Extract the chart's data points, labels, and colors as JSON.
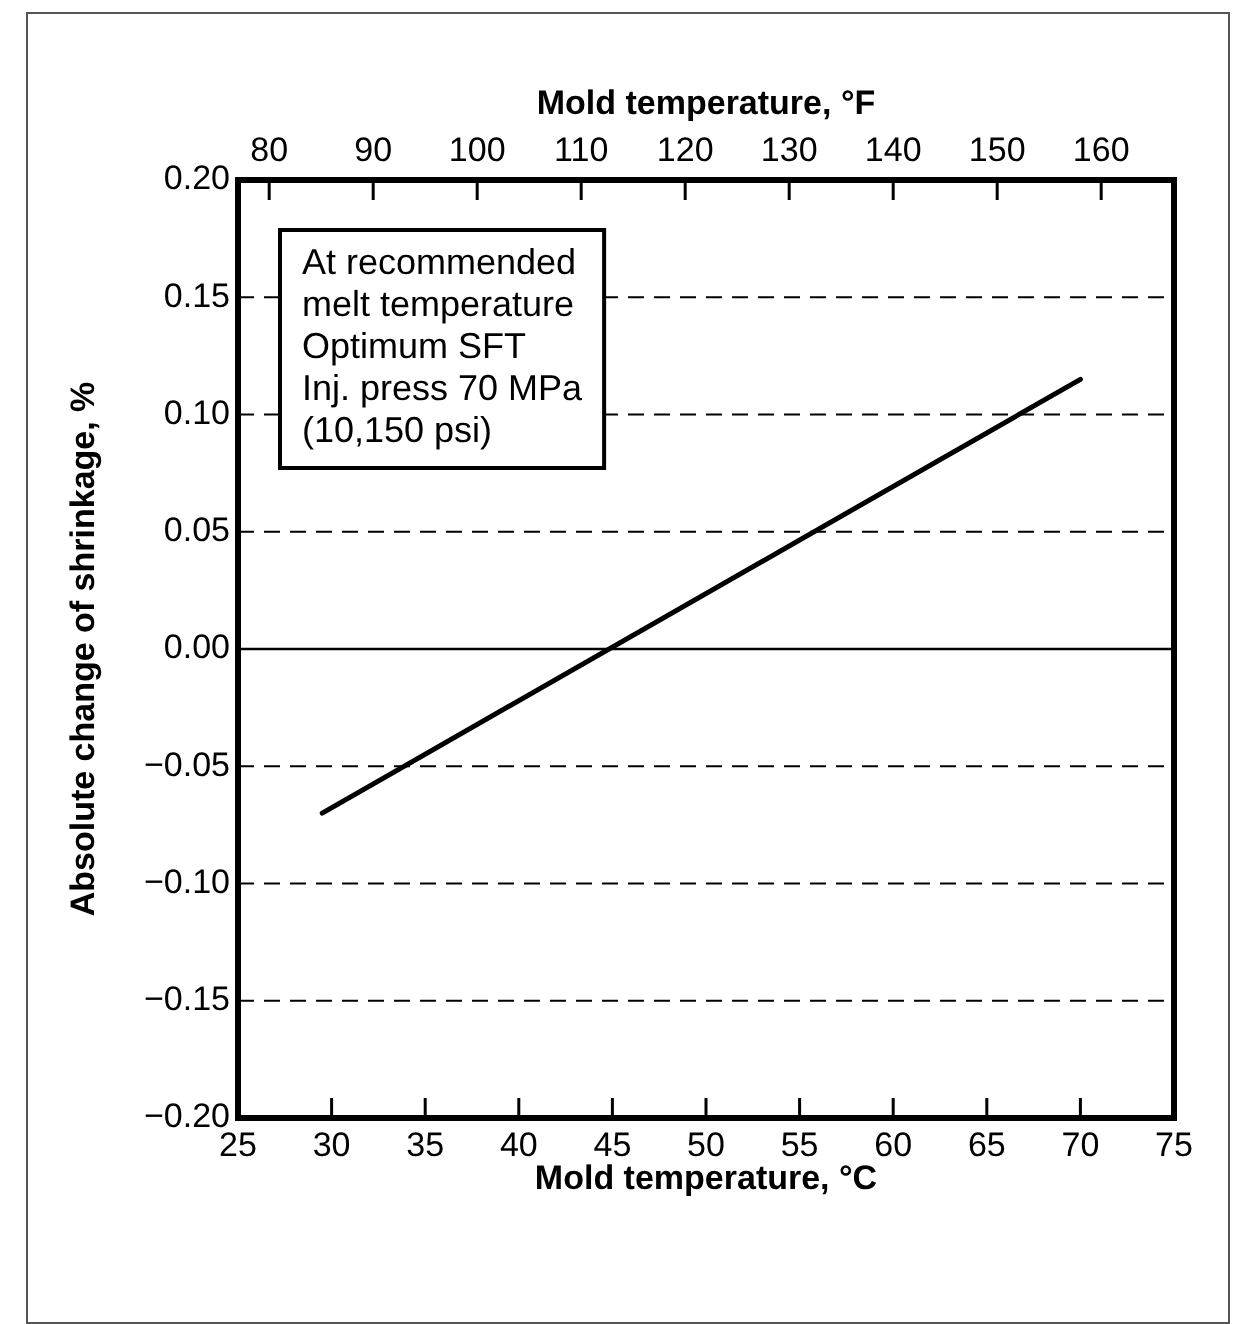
{
  "chart_data": {
    "type": "line",
    "xlabel": "Mold temperature, °C",
    "x2label": "Mold temperature, °F",
    "ylabel": "Absolute change of shrinkage, %",
    "x": [
      29.5,
      70
    ],
    "series": [
      {
        "color": "#000000",
        "values": [
          -0.07,
          0.115
        ]
      }
    ],
    "xlim": [
      25,
      75
    ],
    "xticks": [
      25,
      30,
      35,
      40,
      45,
      50,
      55,
      60,
      65,
      70,
      75
    ],
    "x2lim": [
      77,
      167
    ],
    "x2ticks": [
      80,
      90,
      100,
      110,
      120,
      130,
      140,
      150,
      160
    ],
    "ylim": [
      -0.2,
      0.2
    ],
    "yticks": [
      {
        "value": -0.2,
        "label": "−0.20"
      },
      {
        "value": -0.15,
        "label": "−0.15"
      },
      {
        "value": -0.1,
        "label": "−0.10"
      },
      {
        "value": -0.05,
        "label": "−0.05"
      },
      {
        "value": 0,
        "label": "0.00"
      },
      {
        "value": 0.05,
        "label": "0.05"
      },
      {
        "value": 0.1,
        "label": "0.10"
      },
      {
        "value": 0.15,
        "label": "0.15"
      },
      {
        "value": 0.2,
        "label": "0.20"
      }
    ],
    "grid": "y",
    "line_style": "solid",
    "marker": "none",
    "legend": false,
    "ref_lines": [
      {
        "axis": "y",
        "value": 0,
        "line_style": "solid",
        "color": "#000000"
      }
    ],
    "annotations": [
      "At recommended\nmelt temperature\nOptimum SFT\nInj. press 70 MPa\n(10,150 psi)"
    ]
  }
}
